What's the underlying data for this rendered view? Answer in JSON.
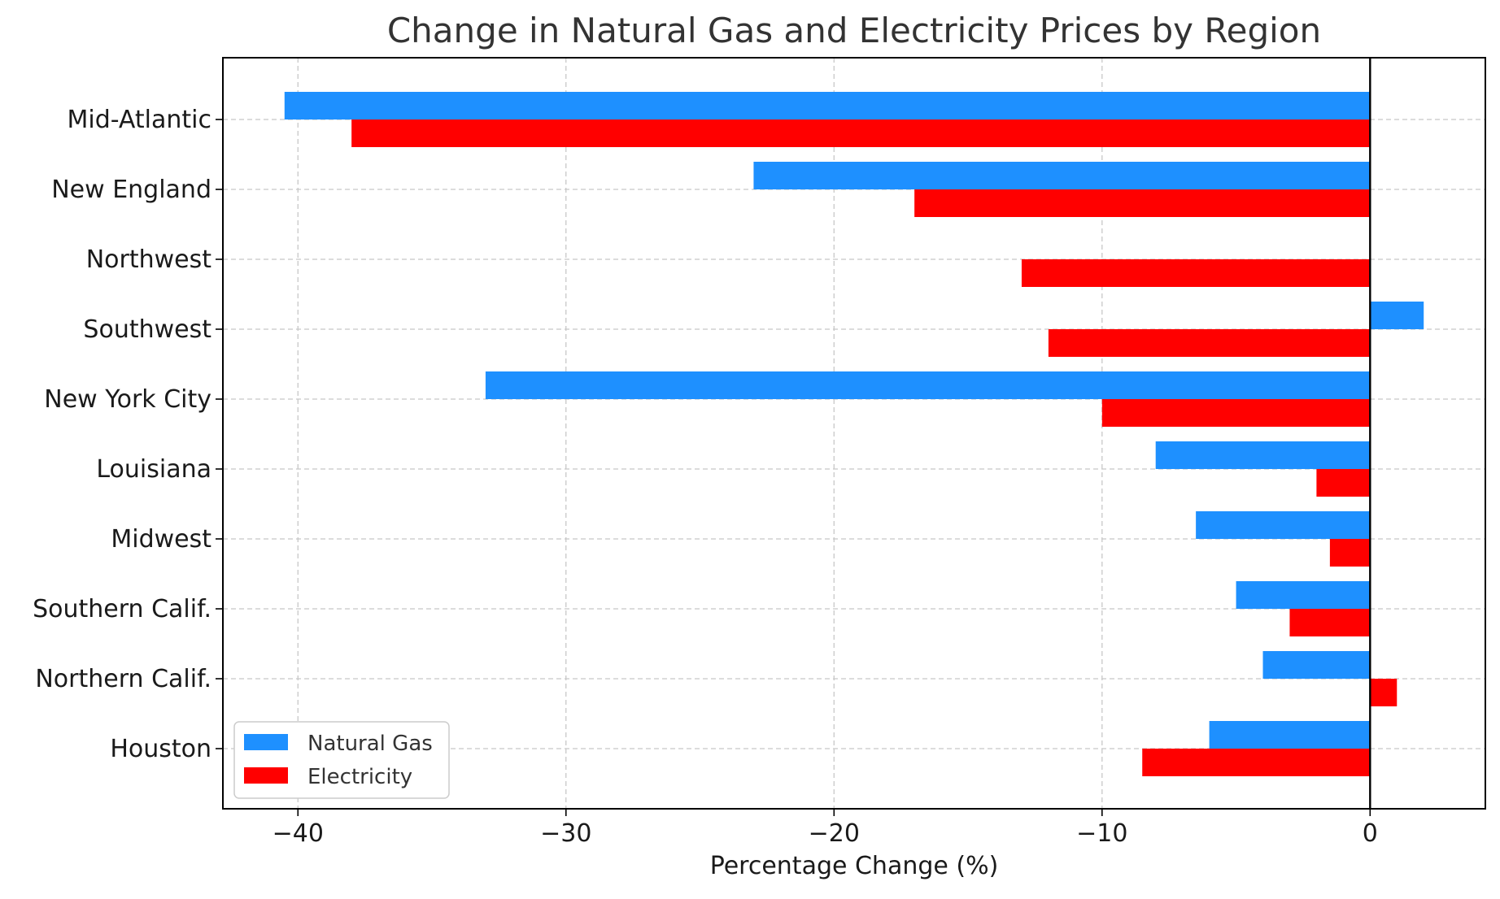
{
  "chart_data": {
    "type": "bar",
    "orientation": "horizontal",
    "title": "Change in Natural Gas and Electricity Prices by Region",
    "xlabel": "Percentage Change (%)",
    "ylabel": "",
    "xlim": [
      -42.8,
      4.3
    ],
    "xticks": [
      -40,
      -30,
      -20,
      -10,
      0
    ],
    "xtick_labels": [
      "−40",
      "−30",
      "−20",
      "−10",
      "0"
    ],
    "grid": true,
    "legend_position": "lower-left",
    "categories": [
      "Mid-Atlantic",
      "New England",
      "Northwest",
      "Southwest",
      "New York City",
      "Louisiana",
      "Midwest",
      "Southern Calif.",
      "Northern Calif.",
      "Houston"
    ],
    "series": [
      {
        "name": "Natural Gas",
        "color": "#1e90ff",
        "values": [
          -40.5,
          -23,
          0,
          2,
          -33,
          -8,
          -6.5,
          -5,
          -4,
          -6
        ]
      },
      {
        "name": "Electricity",
        "color": "#ff0000",
        "values": [
          -38,
          -17,
          -13,
          -12,
          -10,
          -2,
          -1.5,
          -3,
          1,
          -8.5
        ]
      }
    ]
  }
}
